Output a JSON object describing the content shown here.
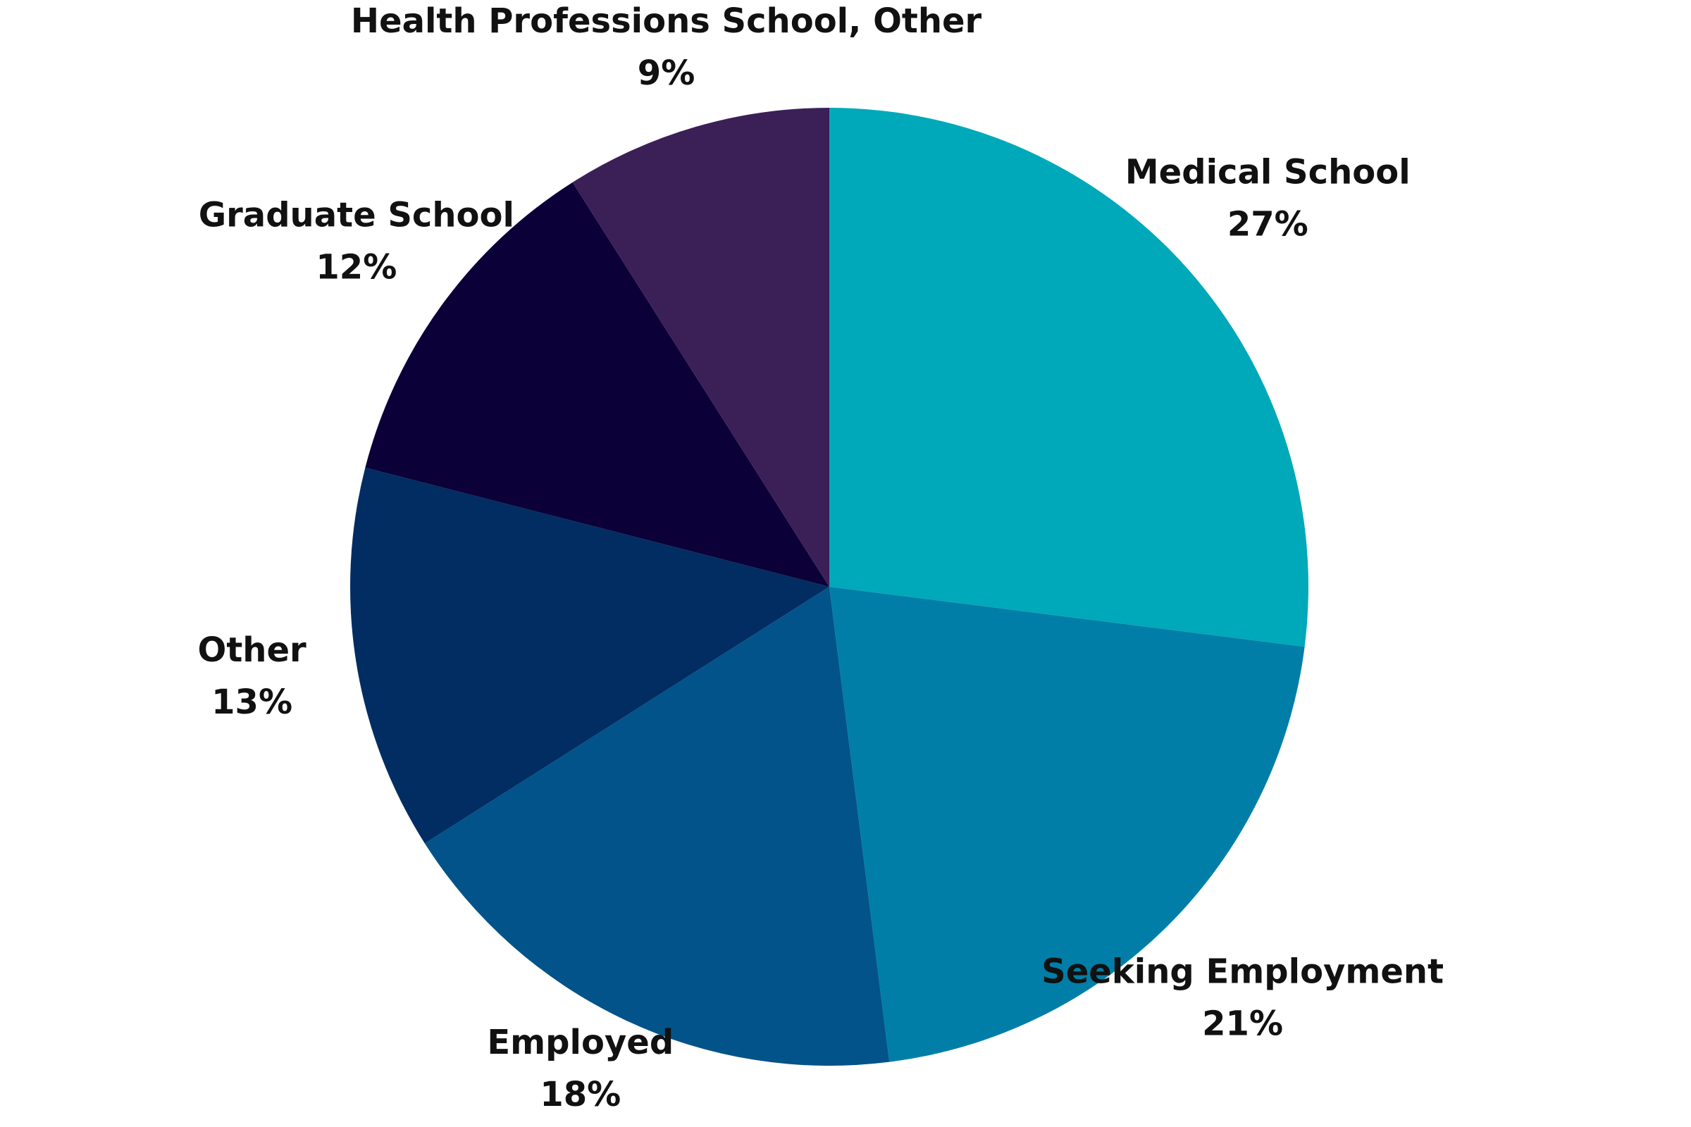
{
  "chart_data": {
    "type": "pie",
    "categories": [
      "Medical School",
      "Seeking Employment",
      "Employed",
      "Other",
      "Graduate School",
      "Health Professions School, Other"
    ],
    "values": [
      27,
      21,
      18,
      13,
      12,
      9
    ],
    "value_labels": [
      "27%",
      "21%",
      "18%",
      "13%",
      "12%",
      "9%"
    ],
    "colors": [
      "#00a9b9",
      "#007ea7",
      "#02538a",
      "#012d62",
      "#0b0038",
      "#3b2058"
    ]
  }
}
